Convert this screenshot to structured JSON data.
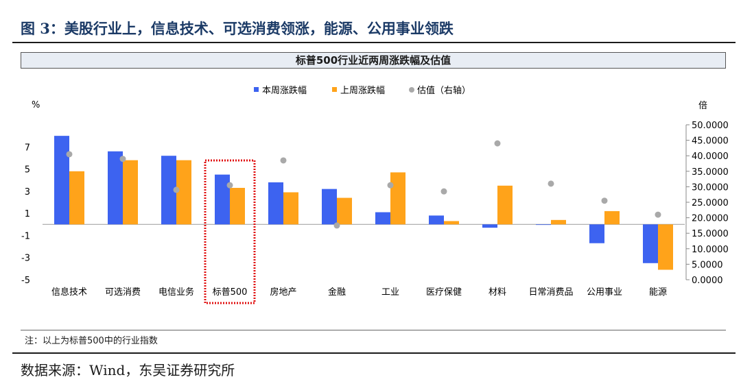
{
  "figure": {
    "title": "图 3：美股行业上，信息技术、可选消费领涨，能源、公用事业领跌",
    "chart_title": "标普500行业近两周涨跌幅及估值",
    "note": "注：以上为标普500中的行业指数",
    "source": "数据来源：Wind，东吴证券研究所"
  },
  "colors": {
    "this_week": "#3d63f0",
    "last_week": "#ffa31a",
    "valuation": "#a9a9a9",
    "highlight": "#e01010"
  },
  "chart_data": {
    "type": "bar",
    "categories": [
      "信息技术",
      "可选消费",
      "电信业务",
      "标普500",
      "房地产",
      "金融",
      "工业",
      "医疗保健",
      "材料",
      "日常消费品",
      "公用事业",
      "能源"
    ],
    "series": [
      {
        "name": "本周涨跌幅",
        "kind": "bar",
        "axis": "left",
        "values": [
          8.0,
          6.6,
          6.2,
          4.5,
          3.8,
          3.2,
          1.1,
          0.8,
          -0.3,
          -0.05,
          -1.7,
          -3.5
        ]
      },
      {
        "name": "上周涨跌幅",
        "kind": "bar",
        "axis": "left",
        "values": [
          4.8,
          5.8,
          5.8,
          3.3,
          2.9,
          2.4,
          4.7,
          0.3,
          3.5,
          0.4,
          1.2,
          -4.1
        ]
      },
      {
        "name": "估值（右轴）",
        "kind": "scatter",
        "axis": "right",
        "values": [
          40.5,
          39.0,
          29.0,
          30.5,
          38.5,
          17.5,
          30.5,
          28.5,
          44.0,
          31.0,
          25.5,
          21.0
        ]
      }
    ],
    "ylabel": "%",
    "y2label": "倍",
    "ylim": [
      -5,
      9
    ],
    "y2lim": [
      0,
      50
    ],
    "yticks": [
      "7",
      "5",
      "3",
      "1",
      "-1",
      "-3",
      "-5"
    ],
    "y2ticks": [
      "50.0000",
      "45.0000",
      "40.0000",
      "35.0000",
      "30.0000",
      "25.0000",
      "20.0000",
      "15.0000",
      "10.0000",
      "5.0000",
      "0.0000"
    ],
    "legend_position": "top",
    "highlighted_category": "标普500",
    "grid": false
  }
}
